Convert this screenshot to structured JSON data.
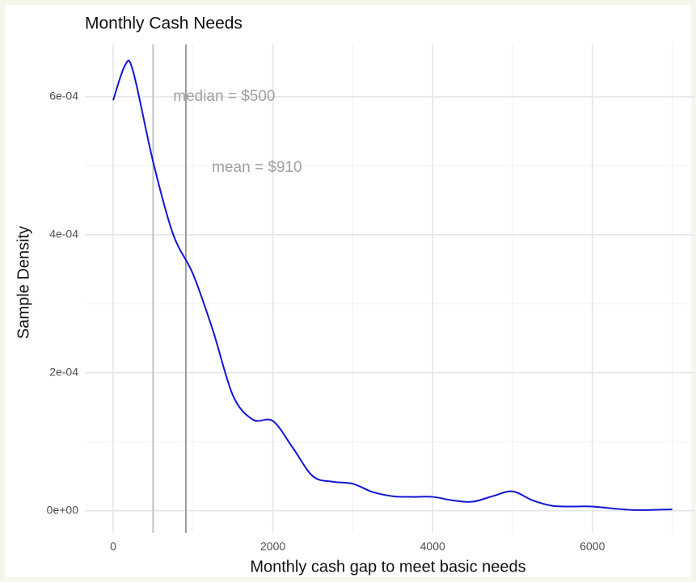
{
  "chart_data": {
    "type": "line",
    "title": "Monthly Cash Needs",
    "x_label": "Monthly cash gap to meet basic needs",
    "y_label": "Sample Density",
    "x": [
      0,
      150,
      250,
      500,
      750,
      1000,
      1250,
      1500,
      1750,
      2000,
      2250,
      2500,
      2750,
      3000,
      3250,
      3500,
      3750,
      4000,
      4250,
      4500,
      4750,
      5000,
      5250,
      5500,
      5750,
      6000,
      6500,
      7000
    ],
    "series": [
      {
        "name": "density",
        "color": "#1414d4",
        "values": [
          0.000595,
          0.000646,
          0.000637,
          0.000506,
          0.000401,
          0.000343,
          0.000261,
          0.000167,
          0.000132,
          0.00013,
          9.1e-05,
          5e-05,
          4.2e-05,
          3.9e-05,
          2.7e-05,
          2.1e-05,
          2e-05,
          2e-05,
          1.5e-05,
          1.3e-05,
          2.1e-05,
          2.8e-05,
          1.5e-05,
          7e-06,
          6e-06,
          6e-06,
          1e-06,
          2e-06
        ]
      }
    ],
    "vlines": [
      {
        "value": 500,
        "label": "median = $500",
        "color": "#c4c4c4"
      },
      {
        "value": 910,
        "label": "mean = $910",
        "color": "#9a9a9a"
      }
    ],
    "xlim": [
      -354,
      7287
    ],
    "ylim": [
      -3.2e-05,
      0.000676
    ],
    "xticks": [
      0,
      2000,
      4000,
      6000
    ],
    "xminorticks": [
      1000,
      3000,
      5000,
      7000
    ],
    "yticks": [
      {
        "value": 0,
        "label": "0e+00"
      },
      {
        "value": 0.0002,
        "label": "2e-04"
      },
      {
        "value": 0.0004,
        "label": "4e-04"
      },
      {
        "value": 0.0006,
        "label": "6e-04"
      }
    ],
    "yminorticks": [
      0.0001,
      0.0003,
      0.0005
    ],
    "grid": true
  }
}
